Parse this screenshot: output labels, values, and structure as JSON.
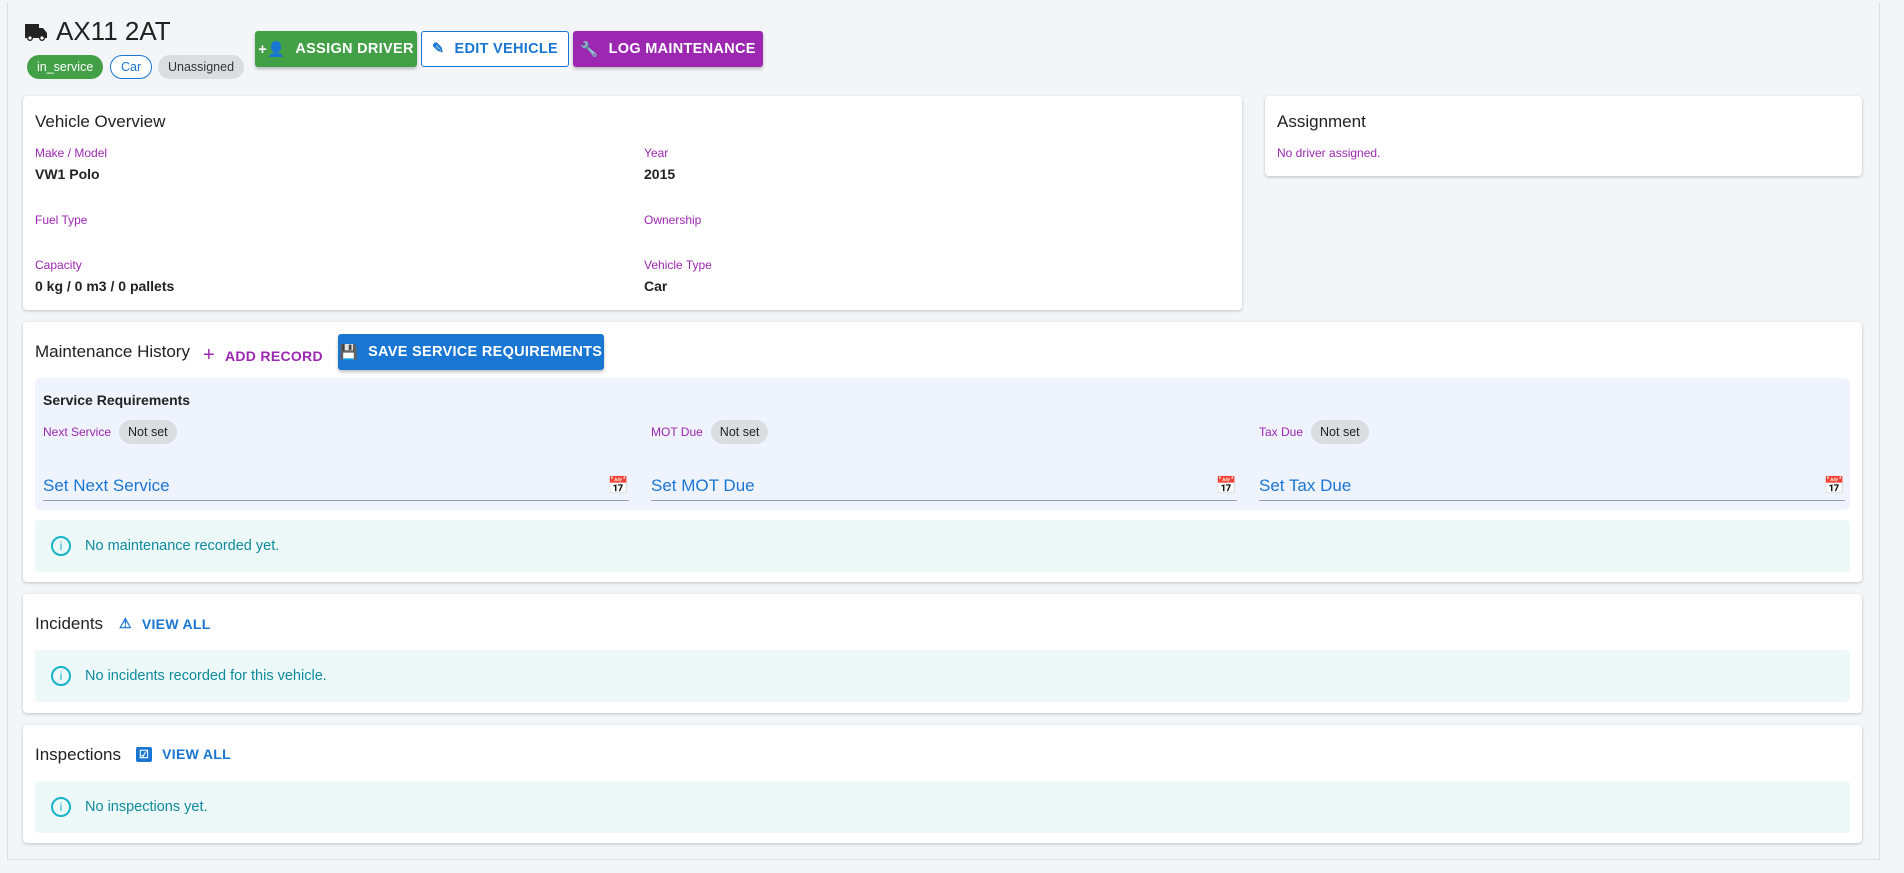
{
  "header": {
    "title": "AX11 2AT",
    "chips": {
      "status": "in_service",
      "type": "Car",
      "assignment": "Unassigned"
    },
    "buttons": {
      "assign": "ASSIGN DRIVER",
      "edit": "EDIT VEHICLE",
      "log": "LOG MAINTENANCE"
    }
  },
  "colors": {
    "green": "#43a047",
    "blue": "#1976d2",
    "purple": "#9c27b0",
    "info": "#0f8a9c"
  },
  "overview": {
    "title": "Vehicle Overview",
    "fields": [
      {
        "label": "Make / Model",
        "value": "VW1 Polo"
      },
      {
        "label": "Year",
        "value": "2015"
      },
      {
        "label": "Fuel Type",
        "value": ""
      },
      {
        "label": "Ownership",
        "value": ""
      },
      {
        "label": "Capacity",
        "value": "0 kg / 0 m3 / 0 pallets"
      },
      {
        "label": "Vehicle Type",
        "value": "Car"
      }
    ]
  },
  "assignment": {
    "title": "Assignment",
    "text": "No driver assigned."
  },
  "maintenance": {
    "title": "Maintenance History",
    "add": "ADD RECORD",
    "save": "SAVE SERVICE REQUIREMENTS",
    "req_title": "Service Requirements",
    "reqs": [
      {
        "label": "Next Service",
        "status": "Not set",
        "placeholder": "Set Next Service"
      },
      {
        "label": "MOT Due",
        "status": "Not set",
        "placeholder": "Set MOT Due"
      },
      {
        "label": "Tax Due",
        "status": "Not set",
        "placeholder": "Set Tax Due"
      }
    ],
    "empty": "No maintenance recorded yet."
  },
  "incidents": {
    "title": "Incidents",
    "view": "VIEW ALL",
    "empty": "No incidents recorded for this vehicle."
  },
  "inspections": {
    "title": "Inspections",
    "view": "VIEW ALL",
    "empty": "No inspections yet."
  }
}
